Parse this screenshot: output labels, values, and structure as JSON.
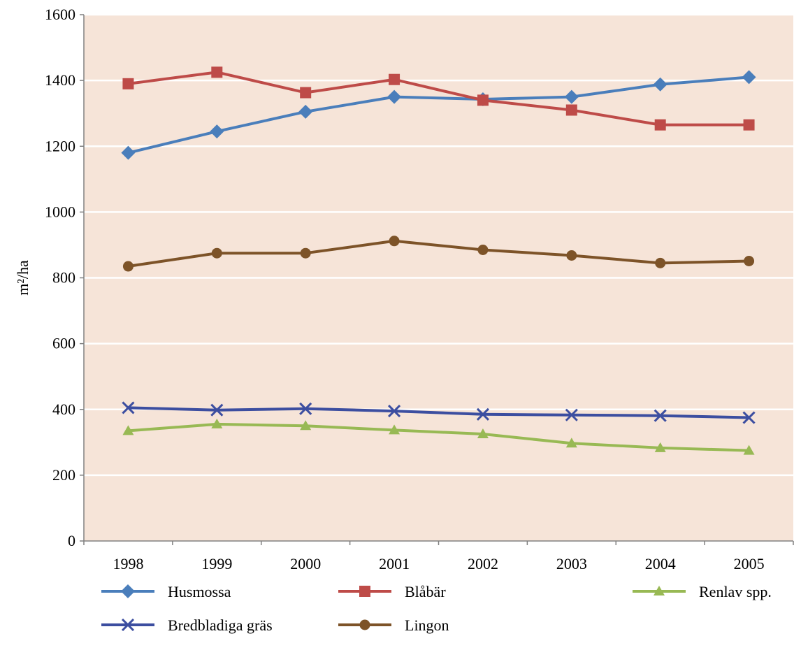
{
  "chart_data": {
    "type": "line",
    "title": "",
    "xlabel": "",
    "ylabel": "m²/ha",
    "ylim": [
      0,
      1600
    ],
    "yticks": [
      0,
      200,
      400,
      600,
      800,
      1000,
      1200,
      1400,
      1600
    ],
    "grid": true,
    "legend_position": "bottom",
    "background_color": "#f6e4d8",
    "categories": [
      "1998",
      "1999",
      "2000",
      "2001",
      "2002",
      "2003",
      "2004",
      "2005"
    ],
    "series": [
      {
        "name": "Husmossa",
        "color": "#4a7ebb",
        "marker": "diamond",
        "values": [
          1180,
          1245,
          1305,
          1350,
          1343,
          1350,
          1388,
          1410
        ]
      },
      {
        "name": "Blåbär",
        "color": "#be4b48",
        "marker": "square",
        "values": [
          1390,
          1425,
          1363,
          1403,
          1340,
          1310,
          1265,
          1265
        ]
      },
      {
        "name": "Renlav spp.",
        "color": "#98b954",
        "marker": "triangle",
        "values": [
          335,
          355,
          350,
          337,
          325,
          297,
          283,
          275
        ]
      },
      {
        "name": "Bredbladiga gräs",
        "color": "#3c4ea0",
        "marker": "x",
        "values": [
          405,
          398,
          402,
          395,
          385,
          383,
          381,
          375
        ]
      },
      {
        "name": "Lingon",
        "color": "#7d5328",
        "marker": "circle",
        "values": [
          835,
          875,
          875,
          912,
          885,
          868,
          845,
          851
        ]
      }
    ]
  }
}
